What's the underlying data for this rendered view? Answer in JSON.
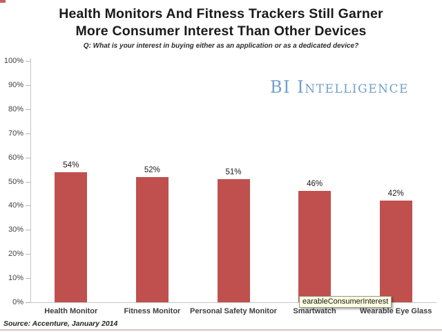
{
  "title": {
    "line1": "Health Monitors And Fitness Trackers Still Garner",
    "line2": "More Consumer Interest Than Other Devices",
    "subtitle": "Q: What is your interest in buying either as an application or as a dedicated device?"
  },
  "logo": {
    "text": "BI Intelligence",
    "color": "#6f9fca"
  },
  "tooltip": {
    "text": "earableConsumerInterest",
    "bg_color": "#ffffe1"
  },
  "source": {
    "text": "Source: Accenture, January 2014"
  },
  "decor": {
    "corner_mark_color": "#c4605d"
  },
  "chart_data": {
    "type": "bar",
    "title": "Health Monitors And Fitness Trackers Still Garner More Consumer Interest Than Other Devices",
    "subtitle": "Q: What is your interest in buying either as an application or as a dedicated device?",
    "categories": [
      "Health Monitor",
      "Fitness Monitor",
      "Personal Safety Monitor",
      "Smartwatch",
      "Wearable Eye Glass"
    ],
    "values": [
      54,
      52,
      51,
      46,
      42
    ],
    "data_labels": [
      "54%",
      "52%",
      "51%",
      "46%",
      "42%"
    ],
    "y_ticks": [
      "100%",
      "90%",
      "80%",
      "70%",
      "60%",
      "50%",
      "40%",
      "30%",
      "20%",
      "10%",
      "0%"
    ],
    "ylim": [
      0,
      100
    ],
    "xlabel": "",
    "ylabel": "",
    "bar_color": "#c0504d",
    "grid": false,
    "legend_position": "none"
  }
}
